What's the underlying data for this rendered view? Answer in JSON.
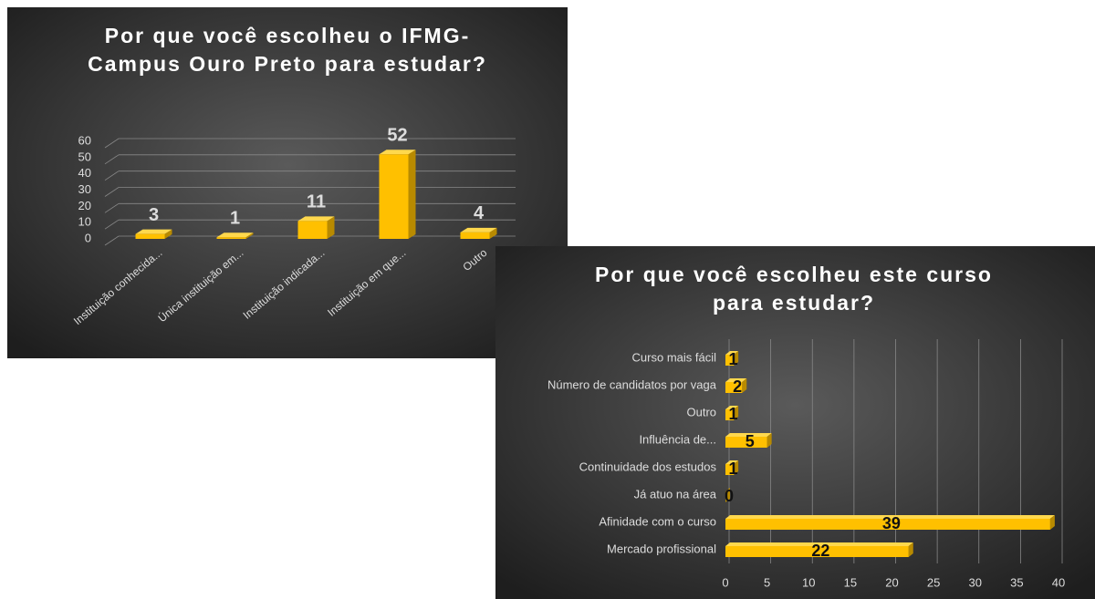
{
  "chart_data": [
    {
      "type": "bar",
      "title": "Por que você escolheu o IFMG-Campus Ouro Preto para estudar?",
      "categories": [
        "Instituição conhecida...",
        "Única instituição em...",
        "Instituição indicada...",
        "Instituição em que...",
        "Outro"
      ],
      "values": [
        3,
        1,
        11,
        52,
        4
      ],
      "color": "#ffc000",
      "ylim": [
        0,
        60
      ],
      "yticks": [
        0,
        10,
        20,
        30,
        40,
        50,
        60
      ],
      "grid": true
    },
    {
      "type": "barh",
      "title": "Por que você escolheu este curso para estudar?",
      "categories": [
        "Curso mais fácil",
        "Número de candidatos por vaga",
        "Outro",
        "Influência de...",
        "Continuidade dos estudos",
        "Já atuo na área",
        "Afinidade com o curso",
        "Mercado profissional"
      ],
      "values": [
        1,
        2,
        1,
        5,
        1,
        0,
        39,
        22
      ],
      "color": "#ffc000",
      "xlim": [
        0,
        40
      ],
      "xticks": [
        0,
        5,
        10,
        15,
        20,
        25,
        30,
        35,
        40
      ],
      "grid": true
    }
  ]
}
